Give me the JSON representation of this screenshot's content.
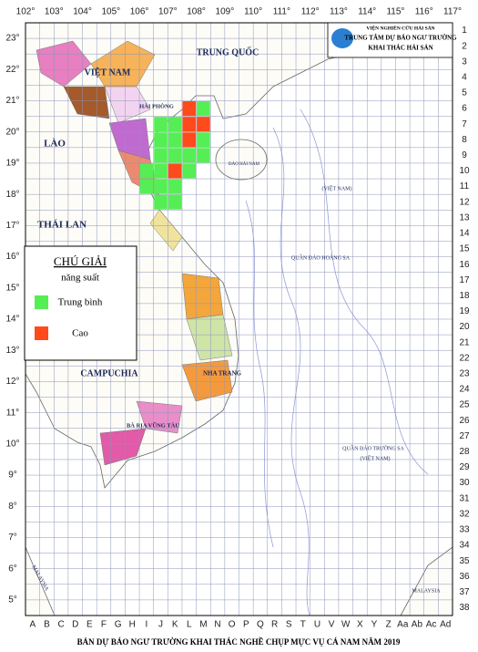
{
  "header": {
    "institute": "VIỆN NGHIÊN CỨU HẢI SẢN",
    "center_line1": "TRUNG TÂM DỰ BÁO NGƯ TRƯỜNG",
    "center_line2": "KHAI THÁC HẢI SẢN"
  },
  "longitudes": [
    "102°",
    "103°",
    "104°",
    "105°",
    "106°",
    "107°",
    "108°",
    "109°",
    "110°",
    "111°",
    "112°",
    "113°",
    "114°",
    "115°",
    "116°",
    "117°"
  ],
  "latitudes": [
    "23°",
    "22°",
    "21°",
    "20°",
    "19°",
    "18°",
    "17°",
    "16°",
    "15°",
    "14°",
    "13°",
    "12°",
    "11°",
    "10°",
    "9°",
    "8°",
    "7°",
    "6°",
    "5°"
  ],
  "columns": [
    "A",
    "B",
    "C",
    "D",
    "E",
    "F",
    "G",
    "H",
    "I",
    "J",
    "K",
    "L",
    "M",
    "N",
    "O",
    "P",
    "Q",
    "R",
    "S",
    "T",
    "U",
    "V",
    "W",
    "X",
    "Y",
    "Z",
    "Aa",
    "Ab",
    "Ac",
    "Ad"
  ],
  "rows": [
    1,
    2,
    3,
    4,
    5,
    6,
    7,
    8,
    9,
    10,
    11,
    12,
    13,
    14,
    15,
    16,
    17,
    18,
    19,
    20,
    21,
    22,
    23,
    24,
    25,
    26,
    27,
    28,
    29,
    30,
    31,
    32,
    33,
    34,
    35,
    36,
    37,
    38
  ],
  "legend": {
    "title": "CHÚ GIẢI",
    "subtitle": "năng suất",
    "items": [
      {
        "label": "Trung bình",
        "color": "#55ee55"
      },
      {
        "label": "Cao",
        "color": "#ff4a1c"
      }
    ]
  },
  "places": [
    "TRUNG QUỐC",
    "VIỆT NAM",
    "LÀO",
    "THÁI LAN",
    "CAMPUCHIA",
    "ĐẢO HẢI NAM",
    "HẢI PHÒNG",
    "NHA TRANG",
    "BÀ RỊA VŨNG TÀU",
    "QUẦN ĐẢO HOÀNG SA",
    "(VIỆT NAM)",
    "QUẦN ĐẢO TRƯỜNG SA",
    "(VIỆT NAM)",
    "MALAYSIA",
    "MALAYSIA"
  ],
  "title": "BẢN DỰ BÁO NGƯ TRƯỜNG KHAI THÁC NGHỀ CHỤP MỰC VỤ CÁ NAM NĂM 2019"
}
